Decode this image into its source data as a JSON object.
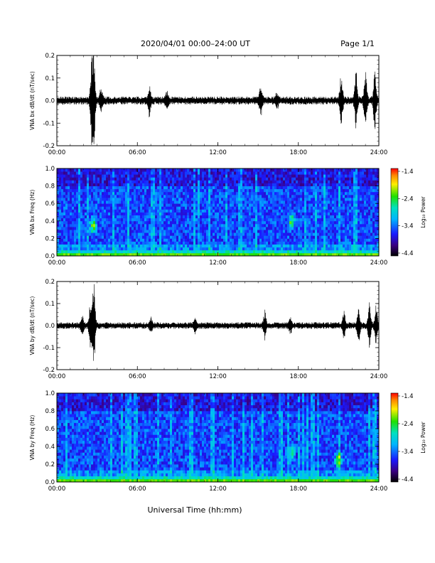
{
  "header": {
    "title": "2020/04/01  00:00–24:00 UT",
    "page": "Page 1/1"
  },
  "x_axis_title": "Universal Time (hh:mm)",
  "chart_data": [
    {
      "type": "line",
      "ylabel": "VNA bx dB/dt (nT/sec)",
      "xlim": [
        0,
        24
      ],
      "ylim": [
        -0.2,
        0.2
      ],
      "yticks": [
        "0.2",
        "0.1",
        "0.0",
        "-0.1",
        "-0.2"
      ],
      "xticks": [
        "00:00",
        "06:00",
        "12:00",
        "18:00",
        "24:00"
      ],
      "bursts": [
        {
          "t": 2.75,
          "amp": 0.2
        },
        {
          "t": 2.6,
          "amp": 0.16
        },
        {
          "t": 3.3,
          "amp": 0.05
        },
        {
          "t": 6.9,
          "amp": 0.06
        },
        {
          "t": 8.2,
          "amp": 0.03
        },
        {
          "t": 15.2,
          "amp": 0.07
        },
        {
          "t": 16.4,
          "amp": 0.03
        },
        {
          "t": 21.2,
          "amp": 0.12
        },
        {
          "t": 22.3,
          "amp": 0.13
        },
        {
          "t": 23.0,
          "amp": 0.13
        },
        {
          "t": 23.7,
          "amp": 0.12
        }
      ],
      "noise": 0.012
    },
    {
      "type": "heatmap",
      "ylabel": "VNA bx Freq (Hz)",
      "xlim": [
        0,
        24
      ],
      "ylim": [
        0,
        1.0
      ],
      "yticks": [
        "1.0",
        "0.8",
        "0.6",
        "0.4",
        "0.2",
        "0.0"
      ],
      "xticks": [
        "00:00",
        "06:00",
        "12:00",
        "18:00",
        "24:00"
      ],
      "colorbar": {
        "label": "Log₁₀ Power",
        "ticks": [
          "-1.4",
          "-2.4",
          "-3.4",
          "-4.4"
        ],
        "range": [
          -4.4,
          -1.4
        ]
      },
      "features": [
        {
          "t": 2.7,
          "f": 0.35,
          "strength": 0.6
        },
        {
          "t": 17.5,
          "f": 0.4,
          "strength": 0.5
        }
      ]
    },
    {
      "type": "line",
      "ylabel": "VNA by dB/dt (nT/sec)",
      "xlim": [
        0,
        24
      ],
      "ylim": [
        -0.2,
        0.2
      ],
      "yticks": [
        "0.2",
        "0.1",
        "0.0",
        "-0.1",
        "-0.2"
      ],
      "xticks": [
        "00:00",
        "06:00",
        "12:00",
        "18:00",
        "24:00"
      ],
      "bursts": [
        {
          "t": 2.75,
          "amp": 0.2
        },
        {
          "t": 2.5,
          "amp": 0.1
        },
        {
          "t": 1.9,
          "amp": 0.04
        },
        {
          "t": 7.0,
          "amp": 0.03
        },
        {
          "t": 10.3,
          "amp": 0.03
        },
        {
          "t": 15.5,
          "amp": 0.06
        },
        {
          "t": 17.4,
          "amp": 0.03
        },
        {
          "t": 21.4,
          "amp": 0.06
        },
        {
          "t": 22.5,
          "amp": 0.07
        },
        {
          "t": 23.3,
          "amp": 0.1
        },
        {
          "t": 23.8,
          "amp": 0.08
        }
      ],
      "noise": 0.01
    },
    {
      "type": "heatmap",
      "ylabel": "VNA by Freq (Hz)",
      "xlim": [
        0,
        24
      ],
      "ylim": [
        0,
        1.0
      ],
      "yticks": [
        "1.0",
        "0.8",
        "0.6",
        "0.4",
        "0.2",
        "0.0"
      ],
      "xticks": [
        "00:00",
        "06:00",
        "12:00",
        "18:00",
        "24:00"
      ],
      "colorbar": {
        "label": "Log₁₀ Power",
        "ticks": [
          "-1.4",
          "-2.4",
          "-3.4",
          "-4.4"
        ],
        "range": [
          -4.4,
          -1.4
        ]
      },
      "features": [
        {
          "t": 17.5,
          "f": 0.35,
          "strength": 0.45
        },
        {
          "t": 21.0,
          "f": 0.25,
          "strength": 0.55
        }
      ]
    }
  ]
}
